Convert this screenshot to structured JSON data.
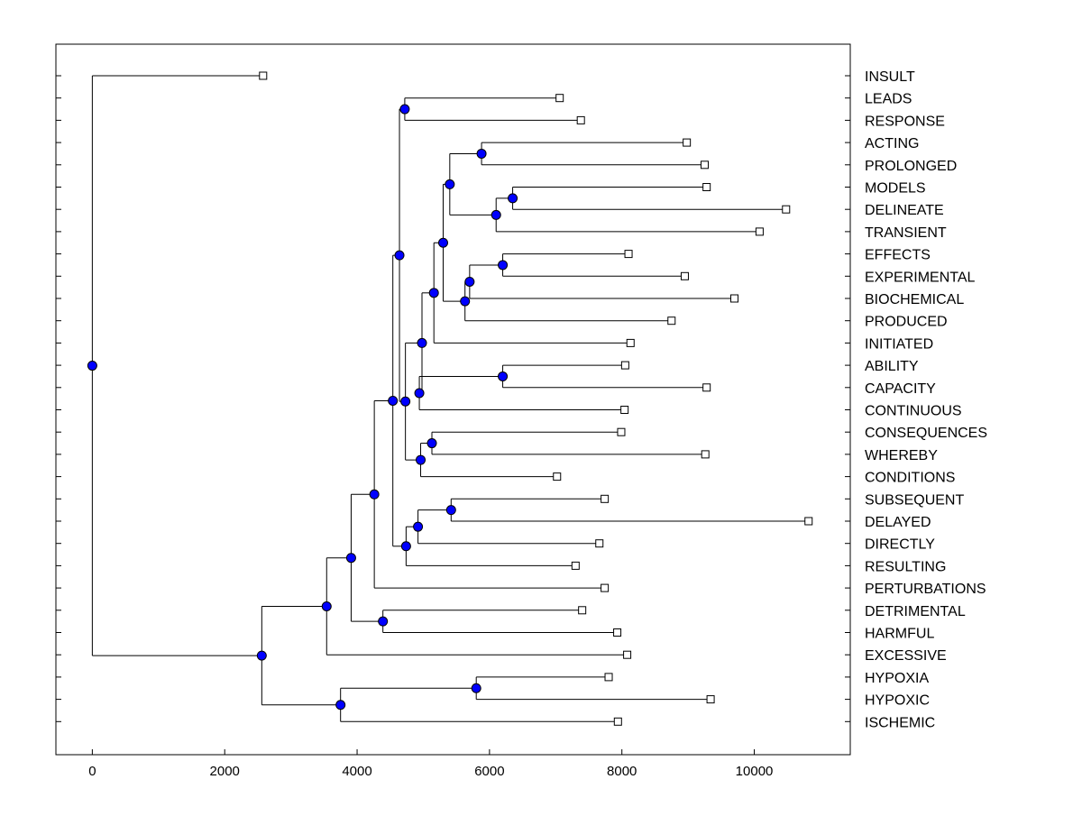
{
  "chart_data": {
    "type": "dendrogram",
    "title": "",
    "xlabel": "",
    "ylabel": "",
    "xlim": [
      -550,
      11450
    ],
    "x_ticks": [
      0,
      2000,
      4000,
      6000,
      8000,
      10000
    ],
    "x_tick_labels": [
      "0",
      "2000",
      "4000",
      "6000",
      "8000",
      "10000"
    ],
    "grid": false,
    "leaf_color": "#ffffff",
    "node_color": "#0000ff",
    "line_color": "#000000",
    "leaves": [
      {
        "label": "INSULT",
        "value": 2580
      },
      {
        "label": "LEADS",
        "value": 7060
      },
      {
        "label": "RESPONSE",
        "value": 7380
      },
      {
        "label": "ACTING",
        "value": 8980
      },
      {
        "label": "PROLONGED",
        "value": 9250
      },
      {
        "label": "MODELS",
        "value": 9280
      },
      {
        "label": "DELINEATE",
        "value": 10480
      },
      {
        "label": "TRANSIENT",
        "value": 10080
      },
      {
        "label": "EFFECTS",
        "value": 8100
      },
      {
        "label": "EXPERIMENTAL",
        "value": 8950
      },
      {
        "label": "BIOCHEMICAL",
        "value": 9700
      },
      {
        "label": "PRODUCED",
        "value": 8750
      },
      {
        "label": "INITIATED",
        "value": 8130
      },
      {
        "label": "ABILITY",
        "value": 8050
      },
      {
        "label": "CAPACITY",
        "value": 9280
      },
      {
        "label": "CONTINUOUS",
        "value": 8040
      },
      {
        "label": "CONSEQUENCES",
        "value": 7990
      },
      {
        "label": "WHEREBY",
        "value": 9260
      },
      {
        "label": "CONDITIONS",
        "value": 7020
      },
      {
        "label": "SUBSEQUENT",
        "value": 7740
      },
      {
        "label": "DELAYED",
        "value": 10820
      },
      {
        "label": "DIRECTLY",
        "value": 7660
      },
      {
        "label": "RESULTING",
        "value": 7300
      },
      {
        "label": "PERTURBATIONS",
        "value": 7740
      },
      {
        "label": "DETRIMENTAL",
        "value": 7400
      },
      {
        "label": "HARMFUL",
        "value": 7930
      },
      {
        "label": "EXCESSIVE",
        "value": 8080
      },
      {
        "label": "HYPOXIA",
        "value": 7800
      },
      {
        "label": "HYPOXIC",
        "value": 9340
      },
      {
        "label": "ISCHEMIC",
        "value": 7940
      }
    ],
    "merges": [
      {
        "id": "n_leads_response",
        "value": 4720,
        "children": [
          1,
          2
        ]
      },
      {
        "id": "n_acting_prolonged",
        "value": 5880,
        "children": [
          3,
          4
        ]
      },
      {
        "id": "n_models_delineate",
        "value": 6350,
        "children": [
          5,
          6
        ]
      },
      {
        "id": "n_md_transient",
        "value": 6100,
        "children": [
          "n_models_delineate",
          7
        ]
      },
      {
        "id": "n_ap_mdt",
        "value": 5400,
        "children": [
          "n_acting_prolonged",
          "n_md_transient"
        ]
      },
      {
        "id": "n_effects_experimental",
        "value": 6200,
        "children": [
          8,
          9
        ]
      },
      {
        "id": "n_ee_biochemical",
        "value": 5700,
        "children": [
          "n_effects_experimental",
          10
        ]
      },
      {
        "id": "n_eeb_produced",
        "value": 5630,
        "children": [
          "n_ee_biochemical",
          11
        ]
      },
      {
        "id": "n_apmdt_eebp",
        "value": 5300,
        "children": [
          "n_ap_mdt",
          "n_eeb_produced"
        ]
      },
      {
        "id": "n_x_initiated",
        "value": 5160,
        "children": [
          "n_apmdt_eebp",
          12
        ]
      },
      {
        "id": "n_ability_capacity",
        "value": 6200,
        "children": [
          13,
          14
        ]
      },
      {
        "id": "n_ac_continuous",
        "value": 4940,
        "children": [
          "n_ability_capacity",
          15
        ]
      },
      {
        "id": "n_xi_acc",
        "value": 4980,
        "children": [
          "n_x_initiated",
          "n_ac_continuous"
        ]
      },
      {
        "id": "n_consequences_whereby",
        "value": 5130,
        "children": [
          16,
          17
        ]
      },
      {
        "id": "n_cw_conditions",
        "value": 4960,
        "children": [
          "n_consequences_whereby",
          18
        ]
      },
      {
        "id": "n_big_cwc",
        "value": 4730,
        "children": [
          "n_xi_acc",
          "n_cw_conditions"
        ]
      },
      {
        "id": "n_lr_big",
        "value": 4640,
        "children": [
          "n_leads_response",
          "n_big_cwc"
        ]
      },
      {
        "id": "n_subsequent_delayed",
        "value": 5420,
        "children": [
          19,
          20
        ]
      },
      {
        "id": "n_sd_directly",
        "value": 4920,
        "children": [
          "n_subsequent_delayed",
          21
        ]
      },
      {
        "id": "n_sdd_resulting",
        "value": 4740,
        "children": [
          "n_sd_directly",
          22
        ]
      },
      {
        "id": "n_upper_sddr",
        "value": 4540,
        "children": [
          "n_lr_big",
          "n_sdd_resulting"
        ]
      },
      {
        "id": "n_u_perturbations",
        "value": 4260,
        "children": [
          "n_upper_sddr",
          23
        ]
      },
      {
        "id": "n_detrimental_harmful",
        "value": 4390,
        "children": [
          24,
          25
        ]
      },
      {
        "id": "n_up_dh",
        "value": 3910,
        "children": [
          "n_u_perturbations",
          "n_detrimental_harmful"
        ]
      },
      {
        "id": "n_updh_excessive",
        "value": 3540,
        "children": [
          "n_up_dh",
          26
        ]
      },
      {
        "id": "n_hypoxia_hypoxic",
        "value": 5800,
        "children": [
          27,
          28
        ]
      },
      {
        "id": "n_hh_ischemic",
        "value": 3750,
        "children": [
          "n_hypoxia_hypoxic",
          29
        ]
      },
      {
        "id": "n_e_hhi",
        "value": 2560,
        "children": [
          "n_updh_excessive",
          "n_hh_ischemic"
        ]
      },
      {
        "id": "n_root",
        "value": 0,
        "children": [
          0,
          "n_e_hhi"
        ]
      }
    ]
  }
}
